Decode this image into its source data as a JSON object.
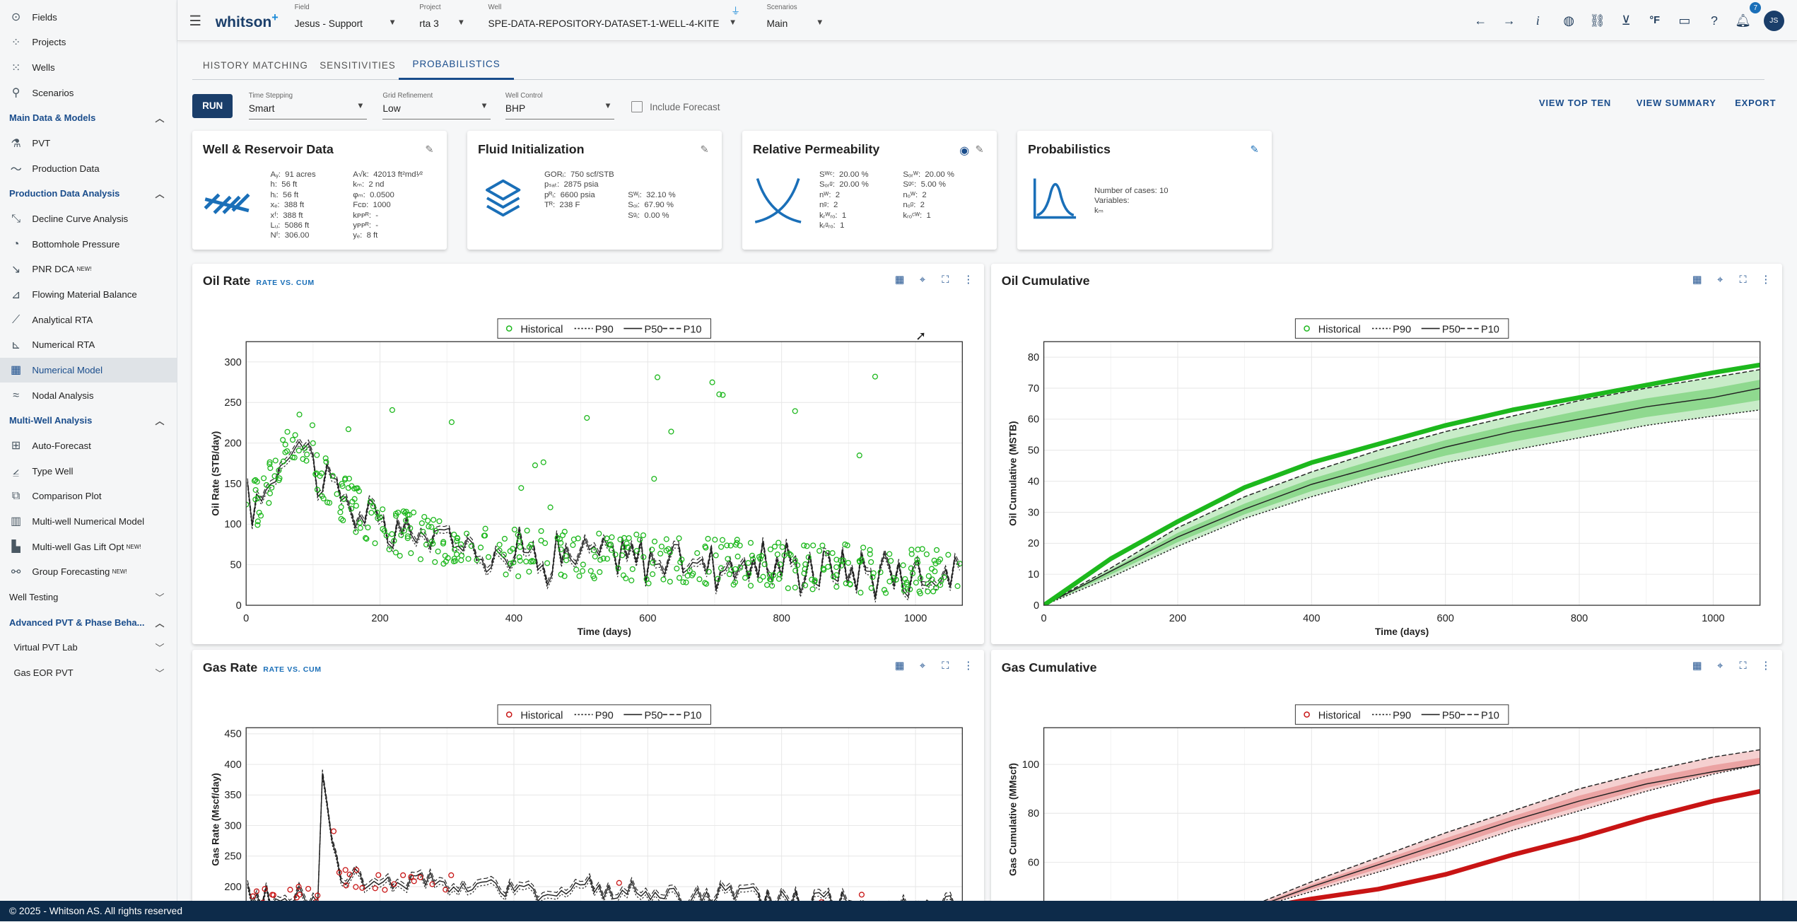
{
  "app": {
    "logo": "whitson",
    "logo_sup": "+"
  },
  "sidebar": {
    "top_items": [
      {
        "label": "Fields",
        "icon": "fields-icon"
      },
      {
        "label": "Projects",
        "icon": "projects-icon"
      },
      {
        "label": "Wells",
        "icon": "wells-icon"
      },
      {
        "label": "Scenarios",
        "icon": "scenarios-icon"
      }
    ],
    "sections": [
      {
        "title": "Main Data & Models",
        "items": [
          {
            "label": "PVT"
          },
          {
            "label": "Production Data"
          }
        ]
      },
      {
        "title": "Production Data Analysis",
        "items": [
          {
            "label": "Decline Curve Analysis"
          },
          {
            "label": "Bottomhole Pressure"
          },
          {
            "label": "PNR DCA",
            "badge": "NEW!"
          },
          {
            "label": "Flowing Material Balance"
          },
          {
            "label": "Analytical RTA"
          },
          {
            "label": "Numerical RTA"
          },
          {
            "label": "Numerical Model"
          },
          {
            "label": "Nodal Analysis"
          }
        ]
      },
      {
        "title": "Multi-Well Analysis",
        "items": [
          {
            "label": "Auto-Forecast"
          },
          {
            "label": "Type Well"
          },
          {
            "label": "Comparison Plot"
          },
          {
            "label": "Multi-well Numerical Model"
          },
          {
            "label": "Multi-well Gas Lift Opt",
            "badge": "NEW!"
          },
          {
            "label": "Group Forecasting",
            "badge": "NEW!"
          }
        ]
      }
    ],
    "well_testing": "Well Testing",
    "advanced_pvt": "Advanced PVT & Phase Beha...",
    "virtual_pvt_lab": "Virtual PVT Lab",
    "gas_eor_pvt": "Gas EOR PVT"
  },
  "topbar": {
    "field_label": "Field",
    "field_value": "Jesus - Support",
    "project_label": "Project",
    "project_value": "rta 3",
    "well_label": "Well",
    "well_value": "SPE-DATA-REPOSITORY-DATASET-1-WELL-4-KITE",
    "scenarios_label": "Scenarios",
    "scenarios_value": "Main",
    "notifications": "7",
    "user": "JS",
    "units": "°F",
    "info": "i"
  },
  "tabs": [
    "HISTORY MATCHING",
    "SENSITIVITIES",
    "PROBABILISTICS"
  ],
  "controls": {
    "run": "RUN",
    "time_stepping_label": "Time Stepping",
    "time_stepping_value": "Smart",
    "grid_label": "Grid Refinement",
    "grid_value": "Low",
    "well_control_label": "Well Control",
    "well_control_value": "BHP",
    "include_forecast": "Include Forecast",
    "view_top_ten": "VIEW TOP TEN",
    "view_summary": "VIEW SUMMARY",
    "export": "EXPORT"
  },
  "cards": {
    "well_reservoir": {
      "title": "Well & Reservoir Data",
      "col1": "Aᵧ:  91 acres\nh:  56 ft\nhᵢ:  56 ft\nxₑ:  388 ft\nxᶠ:  388 ft\nLᵤ:  5086 ft\nNᶠ:  306.00",
      "col2": "A√k:  42013 ft²md¹⁄²\nkₘ:  2 nd\nφₘ:  0.0500\nFᴄᴅ:  1000\nkᴘᴘᴿ:  -\nyᴘᴘᴿ:  -\nyₑ:  8 ft"
    },
    "fluid": {
      "title": "Fluid Initialization",
      "col1": "GORᵢ:  750 scf/STB\npₛₐₜ:  2875 psia\npᴿᵢ:  6600 psia\nTᴿ:  238 F",
      "col2": "\n\nSᵂᵢ:  32.10 %\nSₒᵢ:  67.90 %\nSᵍᵢ:  0.00 %"
    },
    "relperm": {
      "title": "Relative Permeability",
      "col1": "Sᵂᶜ:  20.00 %\nSₒᵣᵍ:  20.00 %\nnᵂ:  2\nnᵍ:  2\nkᵣᵂᵣₒ:  1\nkᵣᵍᵣₒ:  1",
      "col2": "Sₒᵣᵂ:  20.00 %\nSᵍᶜ:  5.00 %\nnₒᵂ:  2\nnₒᵍ:  2\nkᵣₒᶜᵂ:  1"
    },
    "probabilistics": {
      "title": "Probabilistics",
      "col1": "Number of cases: 10\nVariables:\nkₘ"
    }
  },
  "panels": {
    "oil_rate": {
      "title": "Oil Rate",
      "subtitle": "RATE VS. CUM"
    },
    "oil_cum": {
      "title": "Oil Cumulative"
    },
    "gas_rate": {
      "title": "Gas Rate",
      "subtitle": "RATE VS. CUM"
    },
    "gas_cum": {
      "title": "Gas Cumulative"
    }
  },
  "chart_data": [
    {
      "type": "scatter",
      "title": "Oil Rate",
      "xlabel": "Time (days)",
      "ylabel": "Oil Rate (STB/day)",
      "xlim": [
        0,
        1070
      ],
      "ylim": [
        0,
        325
      ],
      "xticks": [
        0,
        200,
        400,
        600,
        800,
        1000
      ],
      "yticks": [
        0,
        50,
        100,
        150,
        200,
        250,
        300
      ],
      "legend": [
        "Historical",
        "P90",
        "P50",
        "P10"
      ],
      "legend_position": "top-center",
      "grid": true,
      "series_color": "#1db81d"
    },
    {
      "type": "line",
      "title": "Oil Cumulative",
      "xlabel": "Time (days)",
      "ylabel": "Oil Cumulative (MSTB)",
      "xlim": [
        0,
        1070
      ],
      "ylim": [
        0,
        85
      ],
      "xticks": [
        0,
        200,
        400,
        600,
        800,
        1000
      ],
      "yticks": [
        0,
        10,
        20,
        30,
        40,
        50,
        60,
        70,
        80
      ],
      "legend": [
        "Historical",
        "P90",
        "P50",
        "P10"
      ],
      "legend_position": "top-center",
      "grid": true,
      "series": [
        {
          "name": "Historical",
          "x": [
            0,
            100,
            200,
            300,
            400,
            500,
            600,
            700,
            800,
            900,
            1000,
            1070
          ],
          "values": [
            0,
            15,
            27,
            38,
            46,
            52,
            58,
            63,
            67,
            71,
            75,
            77.5
          ]
        },
        {
          "name": "P90",
          "x": [
            0,
            100,
            200,
            300,
            400,
            500,
            600,
            700,
            800,
            900,
            1000,
            1070
          ],
          "values": [
            0,
            9,
            19,
            28,
            35,
            41,
            46,
            50,
            54,
            58,
            61,
            63
          ]
        },
        {
          "name": "P50",
          "x": [
            0,
            100,
            200,
            300,
            400,
            500,
            600,
            700,
            800,
            900,
            1000,
            1070
          ],
          "values": [
            0,
            11,
            22,
            31,
            39,
            45,
            51,
            56,
            60,
            64,
            67,
            70
          ]
        },
        {
          "name": "P10",
          "x": [
            0,
            100,
            200,
            300,
            400,
            500,
            600,
            700,
            800,
            900,
            1000,
            1070
          ],
          "values": [
            0,
            12,
            25,
            35,
            43,
            50,
            56,
            61,
            66,
            70,
            73.5,
            76
          ]
        }
      ],
      "series_color": "#1db81d"
    },
    {
      "type": "scatter",
      "title": "Gas Rate",
      "xlabel": "",
      "ylabel": "Gas Rate (Mscf/day)",
      "xlim": [
        0,
        1070
      ],
      "ylim": [
        160,
        460
      ],
      "yticks": [
        200,
        250,
        300,
        350,
        400,
        450
      ],
      "legend": [
        "Historical",
        "P90",
        "P50",
        "P10"
      ],
      "legend_position": "top-center",
      "grid": true,
      "series_color": "#c81414"
    },
    {
      "type": "line",
      "title": "Gas Cumulative",
      "xlabel": "",
      "ylabel": "Gas Cumulative (MMscf)",
      "xlim": [
        0,
        1070
      ],
      "ylim": [
        40,
        115
      ],
      "yticks": [
        60,
        80,
        100
      ],
      "legend": [
        "Historical",
        "P90",
        "P50",
        "P10"
      ],
      "legend_position": "top-center",
      "grid": true,
      "series": [
        {
          "name": "Historical",
          "x": [
            300,
            400,
            500,
            600,
            700,
            800,
            900,
            1000,
            1070
          ],
          "values": [
            40,
            45,
            49,
            55,
            63,
            70,
            78,
            85,
            89
          ]
        },
        {
          "name": "P90",
          "x": [
            300,
            400,
            500,
            600,
            700,
            800,
            900,
            1000,
            1070
          ],
          "values": [
            40,
            48,
            56,
            64,
            73,
            81,
            89,
            96,
            100
          ]
        },
        {
          "name": "P50",
          "x": [
            300,
            400,
            500,
            600,
            700,
            800,
            900,
            1000,
            1070
          ],
          "values": [
            40,
            50,
            59,
            68,
            77,
            85,
            92,
            97,
            100
          ]
        },
        {
          "name": "P10",
          "x": [
            300,
            400,
            500,
            600,
            700,
            800,
            900,
            1000,
            1070
          ],
          "values": [
            41,
            52,
            62,
            72,
            81,
            90,
            97,
            103,
            106
          ]
        }
      ],
      "series_color": "#c81414"
    }
  ],
  "footer": "© 2025 - Whitson AS. All rights reserved"
}
